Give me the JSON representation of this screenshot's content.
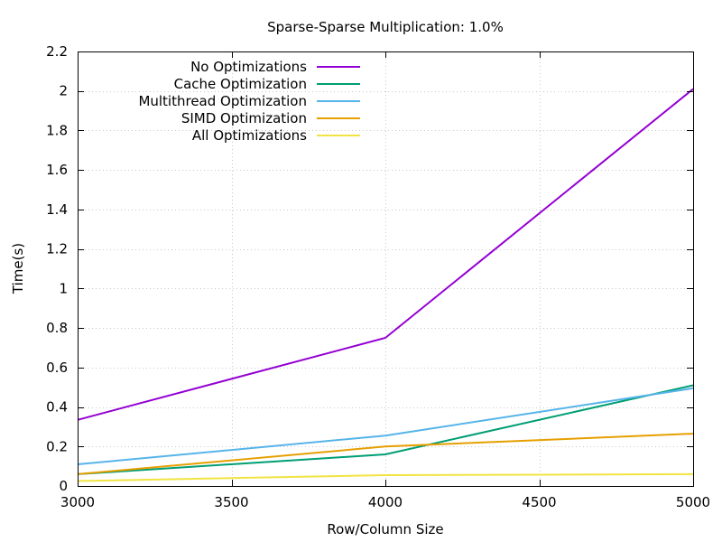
{
  "chart_data": {
    "type": "line",
    "title": "Sparse-Sparse Multiplication: 1.0%",
    "xlabel": "Row/Column Size",
    "ylabel": "Time(s)",
    "xlim": [
      3000,
      5000
    ],
    "ylim": [
      0,
      2.2
    ],
    "x": [
      3000,
      4000,
      5000
    ],
    "xticks": [
      "3000",
      "3500",
      "4000",
      "4500",
      "5000"
    ],
    "xtick_values": [
      3000,
      3500,
      4000,
      4500,
      5000
    ],
    "yticks": [
      "0",
      "0.2",
      "0.4",
      "0.6",
      "0.8",
      "1",
      "1.2",
      "1.4",
      "1.6",
      "1.8",
      "2",
      "2.2"
    ],
    "ytick_values": [
      0,
      0.2,
      0.4,
      0.6,
      0.8,
      1.0,
      1.2,
      1.4,
      1.6,
      1.8,
      2.0,
      2.2
    ],
    "grid": true,
    "legend_position": "top-left",
    "series": [
      {
        "name": "No Optimizations",
        "color": "#9400d3",
        "values": [
          0.335,
          0.75,
          2.01
        ]
      },
      {
        "name": "Cache Optimization",
        "color": "#009e73",
        "values": [
          0.06,
          0.16,
          0.51
        ]
      },
      {
        "name": "Multithread Optimization",
        "color": "#56b4e9",
        "values": [
          0.11,
          0.255,
          0.495
        ]
      },
      {
        "name": "SIMD Optimization",
        "color": "#e69f00",
        "values": [
          0.06,
          0.2,
          0.265
        ]
      },
      {
        "name": "All Optimizations",
        "color": "#f0e442",
        "values": [
          0.025,
          0.055,
          0.06
        ]
      }
    ]
  }
}
